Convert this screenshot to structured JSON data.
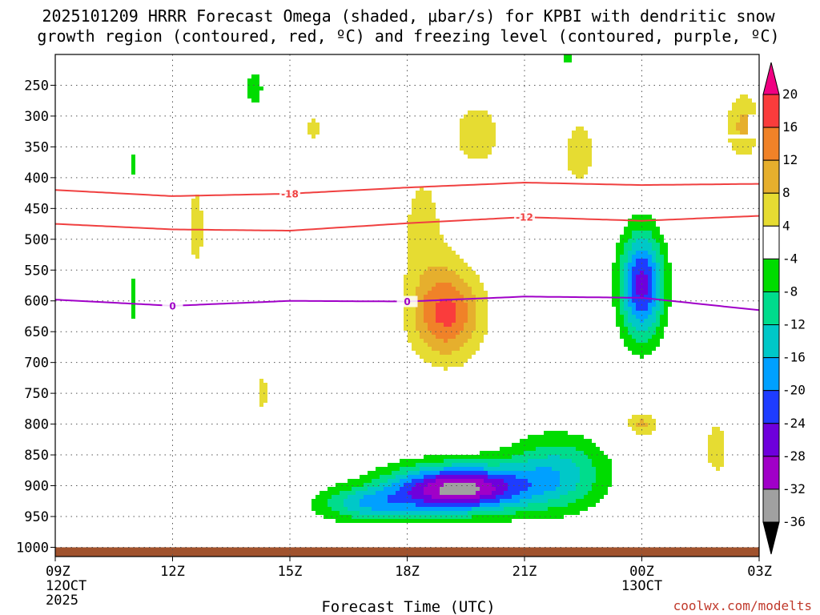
{
  "chart_data": {
    "type": "contour",
    "title_lines": [
      "2025101209 HRRR Forecast Omega (shaded, μbar/s) for KPBI with dendritic snow",
      "growth region (contoured, red, ºC) and freezing level (contoured, purple, ºC)"
    ],
    "xlabel": "Forecast Time (UTC)",
    "credit": "coolwx.com/modelts",
    "y_axis": {
      "reversed": true,
      "units": "hPa",
      "ticks": [
        250,
        300,
        350,
        400,
        450,
        500,
        550,
        600,
        650,
        700,
        750,
        800,
        850,
        900,
        950,
        1000
      ],
      "range": [
        200,
        1015
      ]
    },
    "x_axis": {
      "range_hours": [
        0,
        18
      ],
      "ticks": [
        {
          "hour": 0,
          "label": "09Z",
          "sub1": "12OCT",
          "sub2": "2025"
        },
        {
          "hour": 3,
          "label": "12Z",
          "sub1": "",
          "sub2": ""
        },
        {
          "hour": 6,
          "label": "15Z",
          "sub1": "",
          "sub2": ""
        },
        {
          "hour": 9,
          "label": "18Z",
          "sub1": "",
          "sub2": ""
        },
        {
          "hour": 12,
          "label": "21Z",
          "sub1": "",
          "sub2": ""
        },
        {
          "hour": 15,
          "label": "00Z",
          "sub1": "13OCT",
          "sub2": ""
        },
        {
          "hour": 18,
          "label": "03Z",
          "sub1": "",
          "sub2": ""
        }
      ]
    },
    "colorbar": {
      "levels": [
        "-36",
        "-32",
        "-28",
        "-24",
        "-20",
        "-16",
        "-12",
        "-8",
        "-4",
        "4",
        "8",
        "12",
        "16",
        "20"
      ],
      "bins": [
        {
          "lo": -40,
          "hi": -36,
          "color": "#000000"
        },
        {
          "lo": -36,
          "hi": -32,
          "color": "#a0a0a0"
        },
        {
          "lo": -32,
          "hi": -28,
          "color": "#a000c8"
        },
        {
          "lo": -28,
          "hi": -24,
          "color": "#6e00dc"
        },
        {
          "lo": -24,
          "hi": -20,
          "color": "#1e3cff"
        },
        {
          "lo": -20,
          "hi": -16,
          "color": "#00a0ff"
        },
        {
          "lo": -16,
          "hi": -12,
          "color": "#00c8c8"
        },
        {
          "lo": -12,
          "hi": -8,
          "color": "#00dc8c"
        },
        {
          "lo": -8,
          "hi": -4,
          "color": "#00dc00"
        },
        {
          "lo": -4,
          "hi": 4,
          "color": "#ffffff"
        },
        {
          "lo": 4,
          "hi": 8,
          "color": "#e6dc32"
        },
        {
          "lo": 8,
          "hi": 12,
          "color": "#e6af2d"
        },
        {
          "lo": 12,
          "hi": 16,
          "color": "#f08228"
        },
        {
          "lo": 16,
          "hi": 20,
          "color": "#fa3c3c"
        },
        {
          "lo": 20,
          "hi": 24,
          "color": "#f00082"
        }
      ]
    },
    "omega_features": [
      {
        "name": "upward-motion-core",
        "hour": 10.3,
        "p": 905,
        "peak": -34,
        "sx": 1.7,
        "sp": 38
      },
      {
        "name": "upward-motion-tail-west",
        "hour": 8.0,
        "p": 930,
        "peak": -14,
        "sx": 1.3,
        "sp": 28
      },
      {
        "name": "upward-motion-tail-east",
        "hour": 12.8,
        "p": 880,
        "peak": -14,
        "sx": 1.3,
        "sp": 60
      },
      {
        "name": "upward-motion-column",
        "hour": 15.0,
        "p": 575,
        "peak": -26,
        "sx": 0.55,
        "sp": 85
      },
      {
        "name": "subsidence-core",
        "hour": 10.0,
        "p": 620,
        "peak": 17,
        "sx": 0.9,
        "sp": 75
      },
      {
        "name": "subsidence-upper-plume",
        "hour": 10.8,
        "p": 330,
        "peak": 6,
        "sx": 0.75,
        "sp": 65
      },
      {
        "name": "subsidence-upper-east",
        "hour": 13.4,
        "p": 360,
        "peak": 5.5,
        "sx": 0.55,
        "sp": 75
      },
      {
        "name": "subsidence-midlevel",
        "hour": 9.4,
        "p": 470,
        "peak": 5,
        "sx": 0.7,
        "sp": 110
      },
      {
        "name": "subsidence-far-east",
        "hour": 17.6,
        "p": 315,
        "peak": 9,
        "sx": 0.45,
        "sp": 55
      },
      {
        "name": "subsidence-lowlevel-east",
        "hour": 15.0,
        "p": 800,
        "peak": 9,
        "sx": 0.4,
        "sp": 20
      },
      {
        "name": "subsidence-lowlevel-far-east",
        "hour": 16.9,
        "p": 840,
        "peak": 8,
        "sx": 0.3,
        "sp": 40
      },
      {
        "name": "subsidence-12z-plume",
        "hour": 3.6,
        "p": 480,
        "peak": 5,
        "sx": 0.35,
        "sp": 110
      },
      {
        "name": "subsidence-15z-patch",
        "hour": 6.6,
        "p": 320,
        "peak": 5,
        "sx": 0.35,
        "sp": 30
      },
      {
        "name": "subsidence-14z-low",
        "hour": 5.3,
        "p": 750,
        "peak": 5,
        "sx": 0.25,
        "sp": 45
      },
      {
        "name": "sinking-green-14z",
        "hour": 5.1,
        "p": 255,
        "peak": -6.5,
        "sx": 0.25,
        "sp": 35
      },
      {
        "name": "sinking-green-11z",
        "hour": 2.0,
        "p": 380,
        "peak": -6,
        "sx": 0.15,
        "sp": 25
      },
      {
        "name": "sinking-green-11z-low",
        "hour": 2.0,
        "p": 595,
        "peak": -6,
        "sx": 0.12,
        "sp": 50
      },
      {
        "name": "sinking-green-22z",
        "hour": 13.1,
        "p": 205,
        "peak": -6,
        "sx": 0.2,
        "sp": 15
      }
    ],
    "contours": [
      {
        "name": "dendritic-minus-18",
        "label": "-18",
        "color": "#f04040",
        "label_hour": 6.0,
        "points": [
          [
            0,
            420
          ],
          [
            3,
            430
          ],
          [
            6,
            426
          ],
          [
            9,
            416
          ],
          [
            12,
            408
          ],
          [
            15,
            412
          ],
          [
            18,
            410
          ]
        ]
      },
      {
        "name": "dendritic-minus-12",
        "label": "-12",
        "color": "#f04040",
        "label_hour": 12.0,
        "points": [
          [
            0,
            475
          ],
          [
            3,
            484
          ],
          [
            6,
            486
          ],
          [
            9,
            474
          ],
          [
            12,
            464
          ],
          [
            15,
            470
          ],
          [
            18,
            462
          ]
        ]
      },
      {
        "name": "freezing-level-0",
        "label": "0",
        "color": "#a000c8",
        "label_hour": 3.0,
        "label_hour2": 9.0,
        "points": [
          [
            0,
            598
          ],
          [
            3,
            608
          ],
          [
            6,
            600
          ],
          [
            9,
            601
          ],
          [
            12,
            593
          ],
          [
            15,
            595
          ],
          [
            18,
            615
          ]
        ]
      }
    ],
    "ground_band": {
      "p_top": 1000,
      "color": "#a0522d"
    }
  }
}
